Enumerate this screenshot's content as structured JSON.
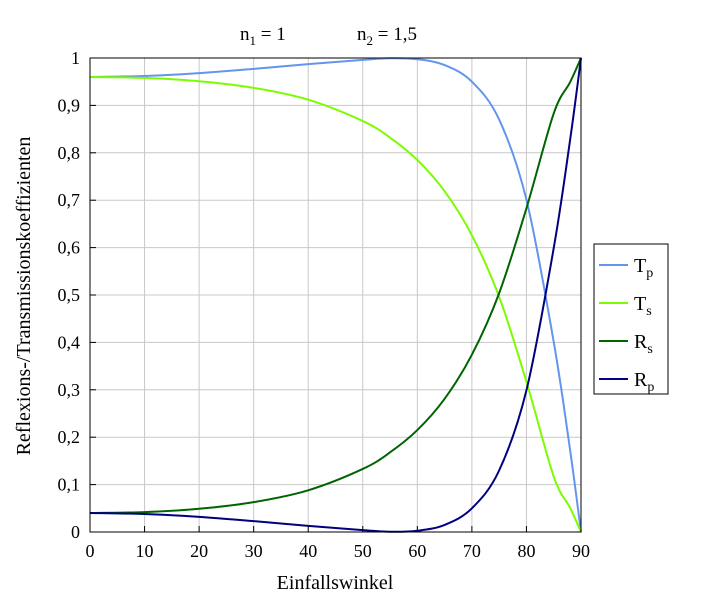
{
  "header": {
    "n1": {
      "symbol": "n",
      "sub": "1",
      "rest": " = 1"
    },
    "n2": {
      "symbol": "n",
      "sub": "2",
      "rest": " = 1,5"
    }
  },
  "chart_data": {
    "type": "line",
    "title": "",
    "xlabel": "Einfallswinkel",
    "ylabel": "Reflexions-/Transmissionskoeffizienten",
    "xlim": [
      0,
      90
    ],
    "ylim": [
      0,
      1
    ],
    "x_ticks": [
      0,
      10,
      20,
      30,
      40,
      50,
      60,
      70,
      80,
      90
    ],
    "y_ticks": [
      {
        "value": 0,
        "label": "0"
      },
      {
        "value": 0.1,
        "label": "0,1"
      },
      {
        "value": 0.2,
        "label": "0,2"
      },
      {
        "value": 0.3,
        "label": "0,3"
      },
      {
        "value": 0.4,
        "label": "0,4"
      },
      {
        "value": 0.5,
        "label": "0,5"
      },
      {
        "value": 0.6,
        "label": "0,6"
      },
      {
        "value": 0.7,
        "label": "0,7"
      },
      {
        "value": 0.8,
        "label": "0,8"
      },
      {
        "value": 0.9,
        "label": "0,9"
      },
      {
        "value": 1,
        "label": "1"
      }
    ],
    "grid": true,
    "legend_position": "right",
    "x": [
      0,
      10,
      20,
      30,
      40,
      50,
      55,
      60,
      65,
      70,
      75,
      80,
      85,
      88,
      90
    ],
    "series": [
      {
        "name": "Tp",
        "label_main": "T",
        "label_sub": "p",
        "color": "#6495ED",
        "values": [
          0.96,
          0.962,
          0.968,
          0.977,
          0.987,
          0.996,
          0.9995,
          0.9974,
          0.985,
          0.95,
          0.87,
          0.701,
          0.401,
          0.173,
          0.0
        ]
      },
      {
        "name": "Ts",
        "label_main": "T",
        "label_sub": "s",
        "color": "#7CFC00",
        "values": [
          0.96,
          0.958,
          0.951,
          0.937,
          0.912,
          0.867,
          0.832,
          0.785,
          0.719,
          0.626,
          0.496,
          0.317,
          0.117,
          0.051,
          0.0
        ]
      },
      {
        "name": "Rs",
        "label_main": "R",
        "label_sub": "s",
        "color": "#006400",
        "values": [
          0.04,
          0.042,
          0.049,
          0.063,
          0.088,
          0.133,
          0.168,
          0.215,
          0.281,
          0.374,
          0.504,
          0.683,
          0.883,
          0.949,
          1.0
        ]
      },
      {
        "name": "Rp",
        "label_main": "R",
        "label_sub": "p",
        "color": "#000080",
        "values": [
          0.04,
          0.038,
          0.032,
          0.023,
          0.013,
          0.004,
          0.0005,
          0.0026,
          0.015,
          0.05,
          0.13,
          0.299,
          0.599,
          0.827,
          1.0
        ]
      }
    ]
  }
}
